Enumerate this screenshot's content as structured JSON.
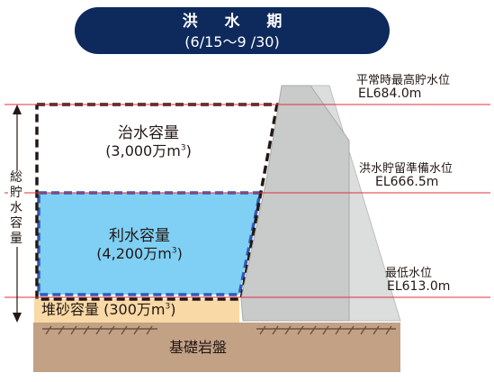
{
  "period": {
    "title": "洪 水 期",
    "dates": "(6/15～9 /30)"
  },
  "levels": [
    {
      "name": "平常時最高貯水位",
      "elevation": "EL684.0m"
    },
    {
      "name": "洪水貯留準備水位",
      "elevation": "EL666.5m"
    },
    {
      "name": "最低水位",
      "elevation": "EL613.0m"
    }
  ],
  "capacities": {
    "flood_control": {
      "label": "治水容量",
      "amount_prefix": "(3,000万m",
      "amount_exp": "3",
      "amount_suffix": ")"
    },
    "utilization": {
      "label": "利水容量",
      "amount_prefix": "(4,200万m",
      "amount_exp": "3",
      "amount_suffix": ")"
    },
    "sediment": {
      "label_prefix": "堆砂容量 (300万m",
      "label_exp": "3",
      "label_suffix": ")"
    }
  },
  "total_storage_label": "総貯水容量",
  "bedrock_label": "基礎岩盤",
  "colors": {
    "badge": "#0e2a5c",
    "level_line": "#e0303a",
    "utilization_fill": "#7fd0f4",
    "utilization_border": "#2f5ab8",
    "sediment_fill": "#f9d9a6",
    "dam": "#c9caca",
    "bedrock": "#c2a185"
  }
}
